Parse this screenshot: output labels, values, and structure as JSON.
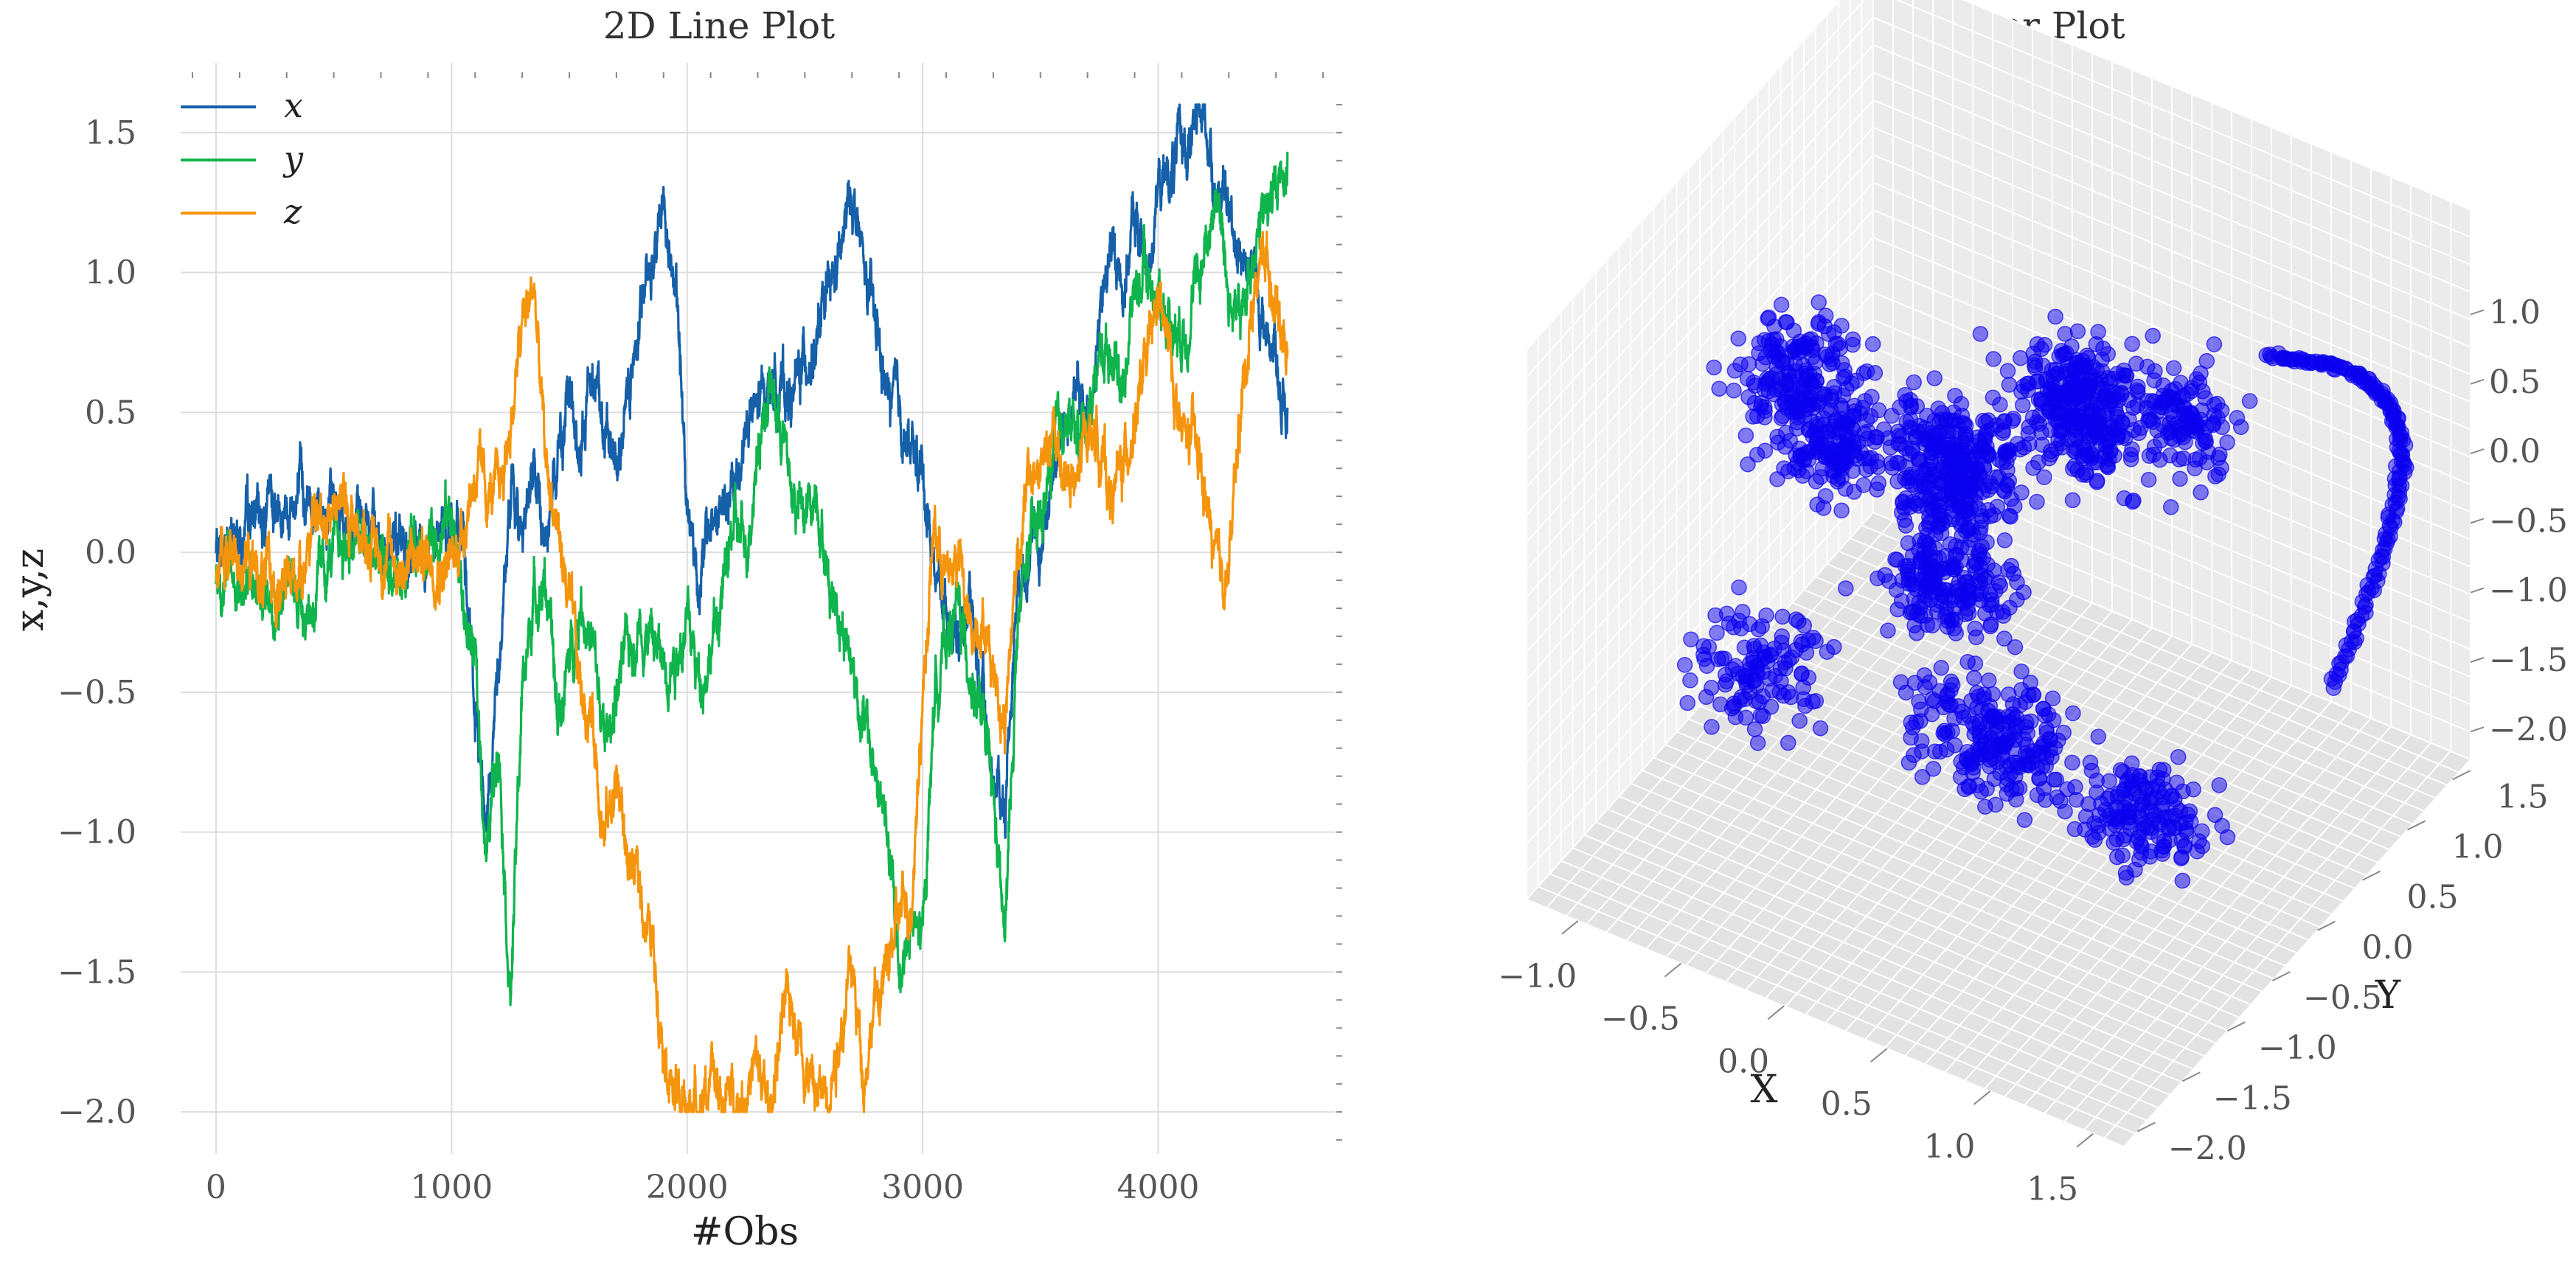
{
  "chart_data": [
    {
      "type": "line",
      "title": "2D Line Plot",
      "xlabel": "#Obs",
      "ylabel": "x,y,z",
      "xlim": [
        -150,
        4750
      ],
      "ylim": [
        -2.15,
        1.75
      ],
      "x_ticks": [
        0,
        1000,
        2000,
        3000,
        4000
      ],
      "x_tick_labels": [
        "0",
        "1000",
        "2000",
        "3000",
        "4000"
      ],
      "y_ticks": [
        1.5,
        1.0,
        0.5,
        0.0,
        -0.5,
        -1.0,
        -1.5,
        -2.0
      ],
      "y_tick_labels": [
        "1.5",
        "1.0",
        "0.5",
        "0.0",
        "−0.5",
        "−1.0",
        "−1.5",
        "−2.0"
      ],
      "grid": true,
      "legend_position": "upper-left",
      "n_points": 4550,
      "series": [
        {
          "name": "x",
          "color": "#1560a8",
          "x": [
            0,
            100,
            200,
            300,
            400,
            500,
            600,
            700,
            800,
            900,
            1000,
            1050,
            1100,
            1150,
            1200,
            1250,
            1300,
            1350,
            1400,
            1450,
            1500,
            1550,
            1600,
            1650,
            1700,
            1750,
            1800,
            1850,
            1900,
            1950,
            2000,
            2050,
            2100,
            2150,
            2200,
            2250,
            2300,
            2350,
            2400,
            2450,
            2500,
            2550,
            2600,
            2650,
            2700,
            2750,
            2800,
            2850,
            2900,
            2950,
            3000,
            3050,
            3100,
            3150,
            3200,
            3250,
            3300,
            3350,
            3400,
            3450,
            3500,
            3550,
            3600,
            3650,
            3700,
            3750,
            3800,
            3850,
            3900,
            3950,
            4000,
            4050,
            4100,
            4150,
            4200,
            4250,
            4300,
            4350,
            4400,
            4450,
            4500,
            4540
          ],
          "y": [
            0.0,
            0.05,
            0.15,
            0.2,
            0.2,
            0.15,
            0.1,
            0.05,
            0.0,
            -0.05,
            0.1,
            0.05,
            -0.6,
            -0.9,
            -0.4,
            0.2,
            0.1,
            0.3,
            0.0,
            0.35,
            0.55,
            0.3,
            0.75,
            0.4,
            0.3,
            0.6,
            0.9,
            1.05,
            1.25,
            0.95,
            0.2,
            -0.1,
            0.1,
            0.15,
            0.2,
            0.45,
            0.5,
            0.6,
            0.6,
            0.55,
            0.7,
            0.75,
            0.9,
            1.05,
            1.3,
            1.0,
            0.8,
            0.55,
            0.5,
            0.35,
            0.3,
            -0.05,
            -0.2,
            -0.3,
            -0.15,
            -0.5,
            -0.8,
            -0.9,
            -0.1,
            0.05,
            0.0,
            0.3,
            0.45,
            0.55,
            0.5,
            0.8,
            1.1,
            0.95,
            1.2,
            1.0,
            1.3,
            1.35,
            1.45,
            1.5,
            1.55,
            1.3,
            1.2,
            1.1,
            1.0,
            0.8,
            0.75,
            0.45
          ]
        },
        {
          "name": "y",
          "color": "#10b44c",
          "x": [
            0,
            100,
            200,
            300,
            400,
            500,
            600,
            700,
            800,
            900,
            1000,
            1050,
            1100,
            1150,
            1200,
            1250,
            1300,
            1350,
            1400,
            1450,
            1500,
            1550,
            1600,
            1650,
            1700,
            1750,
            1800,
            1850,
            1900,
            1950,
            2000,
            2050,
            2100,
            2150,
            2200,
            2250,
            2300,
            2350,
            2400,
            2450,
            2500,
            2550,
            2600,
            2650,
            2700,
            2750,
            2800,
            2850,
            2900,
            2950,
            3000,
            3050,
            3100,
            3150,
            3200,
            3250,
            3300,
            3350,
            3400,
            3450,
            3500,
            3550,
            3600,
            3650,
            3700,
            3750,
            3800,
            3850,
            3900,
            3950,
            4000,
            4050,
            4100,
            4150,
            4200,
            4250,
            4300,
            4350,
            4400,
            4450,
            4500,
            4540
          ],
          "y": [
            -0.05,
            -0.1,
            -0.15,
            -0.1,
            -0.2,
            0.0,
            0.05,
            -0.05,
            -0.1,
            0.05,
            0.15,
            -0.2,
            -0.4,
            -1.1,
            -0.6,
            -1.6,
            -0.5,
            -0.15,
            -0.1,
            -0.6,
            -0.4,
            -0.15,
            -0.35,
            -0.7,
            -0.5,
            -0.35,
            -0.25,
            -0.3,
            -0.4,
            -0.35,
            -0.25,
            -0.45,
            -0.35,
            -0.15,
            0.1,
            0.0,
            0.4,
            0.6,
            0.45,
            0.2,
            0.1,
            0.25,
            -0.1,
            -0.2,
            -0.4,
            -0.6,
            -0.8,
            -1.0,
            -1.5,
            -1.35,
            -1.4,
            -0.5,
            -0.3,
            -0.2,
            -0.4,
            -0.6,
            -0.9,
            -1.4,
            -0.3,
            0.0,
            0.1,
            0.3,
            0.5,
            0.4,
            0.5,
            0.7,
            0.75,
            0.6,
            0.95,
            1.0,
            0.9,
            0.85,
            0.8,
            0.9,
            1.1,
            1.3,
            0.9,
            0.8,
            1.1,
            1.2,
            1.3,
            1.4
          ]
        },
        {
          "name": "z",
          "color": "#f5950d",
          "x": [
            0,
            100,
            200,
            300,
            400,
            500,
            600,
            700,
            800,
            900,
            1000,
            1050,
            1100,
            1150,
            1200,
            1250,
            1300,
            1350,
            1400,
            1450,
            1500,
            1550,
            1600,
            1650,
            1700,
            1750,
            1800,
            1850,
            1900,
            1950,
            2000,
            2050,
            2100,
            2150,
            2200,
            2250,
            2300,
            2350,
            2400,
            2450,
            2500,
            2550,
            2600,
            2650,
            2700,
            2750,
            2800,
            2850,
            2900,
            2950,
            3000,
            3050,
            3100,
            3150,
            3200,
            3250,
            3300,
            3350,
            3400,
            3450,
            3500,
            3550,
            3600,
            3650,
            3700,
            3750,
            3800,
            3850,
            3900,
            3950,
            4000,
            4050,
            4100,
            4150,
            4200,
            4250,
            4300,
            4350,
            4400,
            4450,
            4500,
            4540
          ],
          "y": [
            -0.05,
            0.0,
            -0.1,
            -0.15,
            0.05,
            0.2,
            0.1,
            0.0,
            -0.05,
            0.0,
            -0.05,
            0.1,
            0.3,
            0.2,
            0.2,
            0.45,
            0.8,
            0.95,
            0.3,
            0.1,
            -0.2,
            -0.5,
            -0.6,
            -1.0,
            -0.8,
            -1.1,
            -1.2,
            -1.4,
            -1.7,
            -1.95,
            -2.0,
            -1.95,
            -1.9,
            -1.95,
            -1.95,
            -1.9,
            -1.85,
            -2.0,
            -1.7,
            -1.6,
            -1.8,
            -1.95,
            -1.9,
            -1.7,
            -1.5,
            -1.85,
            -1.6,
            -1.5,
            -1.3,
            -1.25,
            -0.5,
            0.1,
            -0.1,
            0.0,
            -0.3,
            -0.2,
            -0.4,
            -0.6,
            0.0,
            0.25,
            0.3,
            0.4,
            0.3,
            0.2,
            0.45,
            0.4,
            0.2,
            0.3,
            0.5,
            0.65,
            0.9,
            0.7,
            0.4,
            0.4,
            0.2,
            -0.1,
            -0.05,
            0.5,
            0.9,
            1.1,
            0.9,
            0.75
          ]
        }
      ]
    },
    {
      "type": "scatter",
      "projection": "3d",
      "title": "3D Scatter Plot",
      "xlabel": "X",
      "ylabel": "Y",
      "zlabel": "",
      "xlim": [
        -1.25,
        1.65
      ],
      "ylim": [
        -2.15,
        1.7
      ],
      "zlim": [
        -2.2,
        1.3
      ],
      "x_ticks": [
        -1.0,
        -0.5,
        0.0,
        0.5,
        1.0,
        1.5
      ],
      "x_tick_labels": [
        "−1.0",
        "−0.5",
        "0.0",
        "0.5",
        "1.0",
        "1.5"
      ],
      "y_ticks": [
        -2.0,
        -1.5,
        -1.0,
        -0.5,
        0.0,
        0.5,
        1.0,
        1.5
      ],
      "y_tick_labels": [
        "−2.0",
        "−1.5",
        "−1.0",
        "−0.5",
        "0.0",
        "0.5",
        "1.0",
        "1.5"
      ],
      "z_ticks": [
        1.0,
        0.5,
        0.0,
        -0.5,
        -1.0,
        -1.5,
        -2.0
      ],
      "z_tick_labels": [
        "1.0",
        "0.5",
        "0.0",
        "−0.5",
        "−1.0",
        "−1.5",
        "−2.0"
      ],
      "marker_color": "#0a00f0",
      "clusters": [
        {
          "cx": -0.9,
          "cy": 0.0,
          "cz": 0.3,
          "sx": 0.25,
          "sy": 0.4,
          "sz": 0.25,
          "n": 140
        },
        {
          "cx": -0.55,
          "cy": -0.4,
          "cz": 0.3,
          "sx": 0.25,
          "sy": 0.3,
          "sz": 0.3,
          "n": 180
        },
        {
          "cx": -0.1,
          "cy": -0.05,
          "cz": 0.1,
          "sx": 0.3,
          "sy": 0.3,
          "sz": 0.35,
          "n": 300
        },
        {
          "cx": 0.35,
          "cy": 0.25,
          "cz": 0.45,
          "sx": 0.35,
          "sy": 0.3,
          "sz": 0.25,
          "n": 180
        },
        {
          "cx": 0.15,
          "cy": 0.9,
          "cz": 0.15,
          "sx": 0.3,
          "sy": 0.25,
          "sz": 0.3,
          "n": 140
        },
        {
          "cx": 0.0,
          "cy": -0.3,
          "cz": -0.45,
          "sx": 0.3,
          "sy": 0.3,
          "sz": 0.3,
          "n": 200
        },
        {
          "cx": 0.3,
          "cy": -0.5,
          "cz": -1.3,
          "sx": 0.35,
          "sy": 0.4,
          "sz": 0.3,
          "n": 220
        },
        {
          "cx": -0.6,
          "cy": -1.0,
          "cz": -1.0,
          "sx": 0.3,
          "sy": 0.4,
          "sz": 0.3,
          "n": 120
        },
        {
          "cx": 0.8,
          "cy": 0.0,
          "cz": -1.9,
          "sx": 0.3,
          "sy": 0.4,
          "sz": 0.1,
          "n": 160
        },
        {
          "cx": 0.45,
          "cy": 1.3,
          "cz": -0.2,
          "sx": 0.2,
          "sy": 0.2,
          "sz": 0.3,
          "n": 110
        }
      ],
      "arc": {
        "n": 170,
        "x": [
          1.2,
          1.5
        ],
        "y": [
          0.5,
          1.55
        ],
        "z": [
          1.3,
          -0.9
        ]
      }
    }
  ]
}
